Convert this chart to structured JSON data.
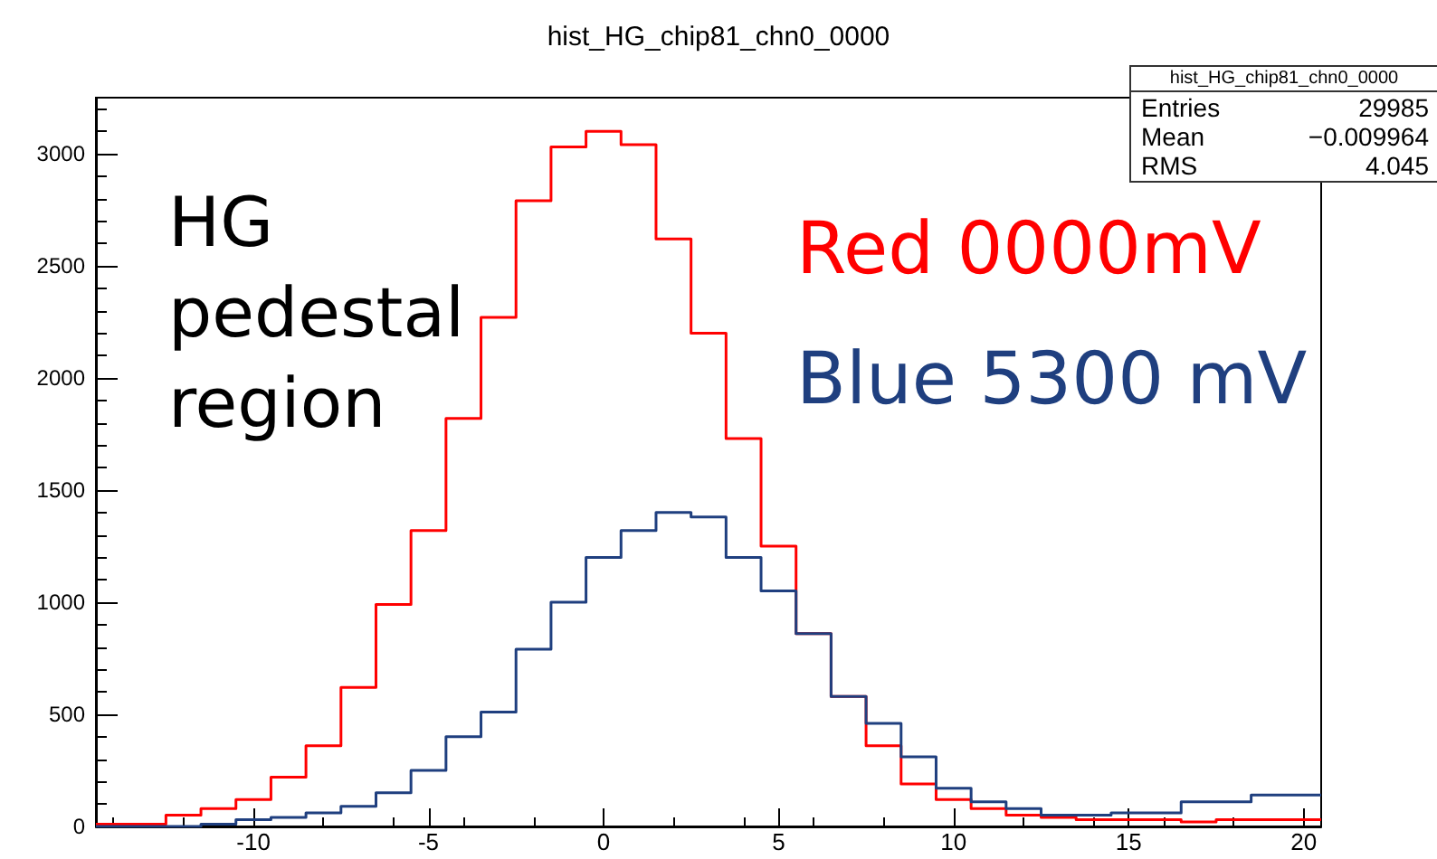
{
  "chart_data": {
    "type": "histogram",
    "title": "hist_HG_chip81_chn0_0000",
    "bins": [
      -14.5,
      -13.5,
      -12.5,
      -11.5,
      -10.5,
      -9.5,
      -8.5,
      -7.5,
      -6.5,
      -5.5,
      -4.5,
      -3.5,
      -2.5,
      -1.5,
      -0.5,
      0.5,
      1.5,
      2.5,
      3.5,
      4.5,
      5.5,
      6.5,
      7.5,
      8.5,
      9.5,
      10.5,
      11.5,
      12.5,
      13.5,
      14.5,
      15.5,
      16.5,
      17.5,
      18.5,
      19.5,
      20.5
    ],
    "series": [
      {
        "name": "Red 0000mV",
        "color": "#ff0000",
        "values": [
          10,
          10,
          50,
          80,
          120,
          220,
          360,
          620,
          990,
          1320,
          1820,
          2270,
          2790,
          3030,
          3100,
          3040,
          2620,
          2200,
          1730,
          1250,
          860,
          580,
          360,
          190,
          120,
          80,
          50,
          40,
          30,
          30,
          30,
          20,
          30,
          30,
          30
        ]
      },
      {
        "name": "Blue 5300 mV",
        "color": "#1f3f7f",
        "values": [
          0,
          0,
          0,
          10,
          30,
          40,
          60,
          90,
          150,
          250,
          400,
          510,
          790,
          1000,
          1200,
          1320,
          1400,
          1380,
          1200,
          1050,
          860,
          580,
          460,
          310,
          170,
          110,
          80,
          50,
          50,
          60,
          60,
          110,
          110,
          140,
          140
        ]
      }
    ],
    "xlim": [
      -14.5,
      20.5
    ],
    "xticks": [
      -10,
      -5,
      0,
      5,
      10,
      15,
      20
    ],
    "ylim": [
      0,
      3250
    ],
    "yticks": [
      0,
      500,
      1000,
      1500,
      2000,
      2500,
      3000
    ],
    "annotations": [
      "HG pedestal region",
      "hist_HG_chip81_chn0_0000",
      "Entries",
      "29985",
      "Mean",
      "−0.009964",
      "RMS",
      "4.045"
    ]
  }
}
